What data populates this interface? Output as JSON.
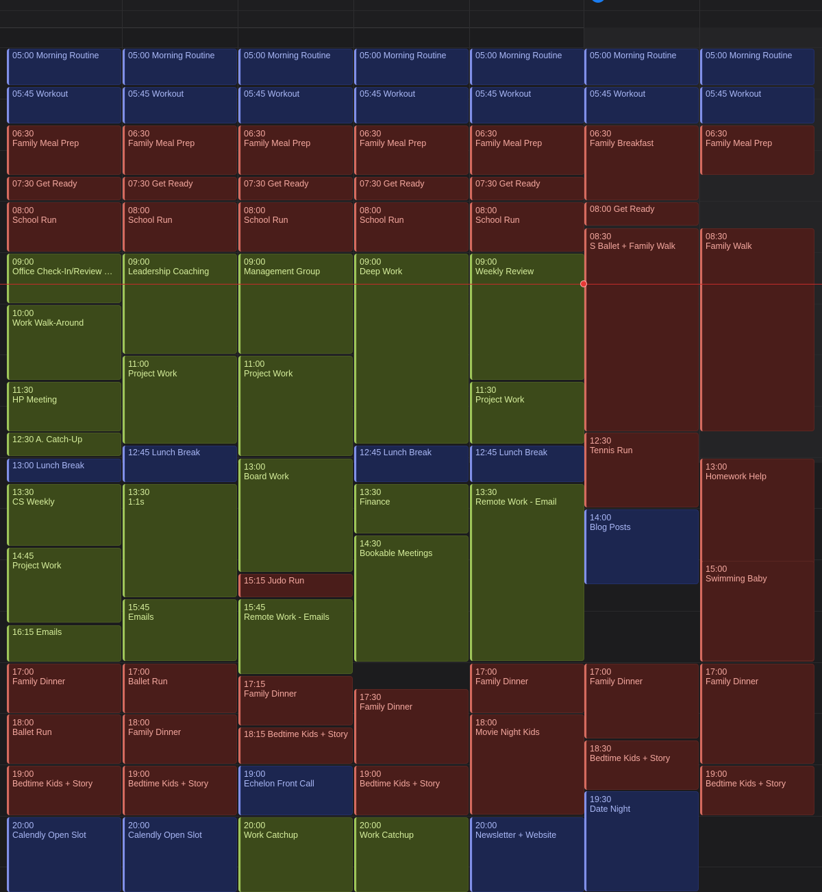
{
  "calendar": {
    "columns": [
      {
        "events": [
          {
            "time": "05:00",
            "name": "Morning Routine",
            "color": "blue"
          },
          {
            "time": "05:45",
            "name": "Workout",
            "color": "blue"
          },
          {
            "time": "06:30",
            "name": "Family Meal Prep",
            "color": "red"
          },
          {
            "time": "07:30",
            "name": "Get Ready",
            "color": "red"
          },
          {
            "time": "08:00",
            "name": "School Run",
            "color": "red"
          },
          {
            "time": "09:00",
            "name": "Office Check-In/Review W...",
            "color": "green"
          },
          {
            "time": "10:00",
            "name": "Work Walk-Around",
            "color": "green"
          },
          {
            "time": "11:30",
            "name": "HP Meeting",
            "color": "green"
          },
          {
            "time": "12:30",
            "name": "A. Catch-Up",
            "color": "green"
          },
          {
            "time": "13:00",
            "name": "Lunch Break",
            "color": "blue"
          },
          {
            "time": "13:30",
            "name": "CS Weekly",
            "color": "green"
          },
          {
            "time": "14:45",
            "name": "Project Work",
            "color": "green"
          },
          {
            "time": "16:15",
            "name": "Emails",
            "color": "green"
          },
          {
            "time": "17:00",
            "name": "Family Dinner",
            "color": "red"
          },
          {
            "time": "18:00",
            "name": "Ballet Run",
            "color": "red"
          },
          {
            "time": "19:00",
            "name": "Bedtime Kids + Story",
            "color": "red"
          },
          {
            "time": "20:00",
            "name": "Calendly Open Slot",
            "color": "blue"
          }
        ]
      },
      {
        "events": [
          {
            "time": "05:00",
            "name": "Morning Routine",
            "color": "blue"
          },
          {
            "time": "05:45",
            "name": "Workout",
            "color": "blue"
          },
          {
            "time": "06:30",
            "name": "Family Meal Prep",
            "color": "red"
          },
          {
            "time": "07:30",
            "name": "Get Ready",
            "color": "red"
          },
          {
            "time": "08:00",
            "name": "School Run",
            "color": "red"
          },
          {
            "time": "09:00",
            "name": "Leadership Coaching",
            "color": "green"
          },
          {
            "time": "11:00",
            "name": "Project Work",
            "color": "green"
          },
          {
            "time": "12:45",
            "name": "Lunch Break",
            "color": "blue"
          },
          {
            "time": "13:30",
            "name": "1:1s",
            "color": "green"
          },
          {
            "time": "15:45",
            "name": "Emails",
            "color": "green"
          },
          {
            "time": "17:00",
            "name": "Ballet Run",
            "color": "red"
          },
          {
            "time": "18:00",
            "name": "Family Dinner",
            "color": "red"
          },
          {
            "time": "19:00",
            "name": "Bedtime Kids + Story",
            "color": "red"
          },
          {
            "time": "20:00",
            "name": "Calendly Open Slot",
            "color": "blue"
          }
        ]
      },
      {
        "events": [
          {
            "time": "05:00",
            "name": "Morning Routine",
            "color": "blue"
          },
          {
            "time": "05:45",
            "name": "Workout",
            "color": "blue"
          },
          {
            "time": "06:30",
            "name": "Family Meal Prep",
            "color": "red"
          },
          {
            "time": "07:30",
            "name": "Get Ready",
            "color": "red"
          },
          {
            "time": "08:00",
            "name": "School Run",
            "color": "red"
          },
          {
            "time": "09:00",
            "name": "Management Group",
            "color": "green"
          },
          {
            "time": "11:00",
            "name": "Project Work",
            "color": "green"
          },
          {
            "time": "13:00",
            "name": "Board Work",
            "color": "green"
          },
          {
            "time": "15:15",
            "name": "Judo Run",
            "color": "red"
          },
          {
            "time": "15:45",
            "name": "Remote Work - Emails",
            "color": "green"
          },
          {
            "time": "17:15",
            "name": "Family Dinner",
            "color": "red"
          },
          {
            "time": "18:15",
            "name": "Bedtime Kids + Story",
            "color": "red"
          },
          {
            "time": "19:00",
            "name": "Echelon Front Call",
            "color": "blue"
          },
          {
            "time": "20:00",
            "name": "Work Catchup",
            "color": "green"
          }
        ]
      },
      {
        "events": [
          {
            "time": "05:00",
            "name": "Morning Routine",
            "color": "blue"
          },
          {
            "time": "05:45",
            "name": "Workout",
            "color": "blue"
          },
          {
            "time": "06:30",
            "name": "Family Meal Prep",
            "color": "red"
          },
          {
            "time": "07:30",
            "name": "Get Ready",
            "color": "red"
          },
          {
            "time": "08:00",
            "name": "School Run",
            "color": "red"
          },
          {
            "time": "09:00",
            "name": "Deep Work",
            "color": "green"
          },
          {
            "time": "12:45",
            "name": "Lunch Break",
            "color": "blue"
          },
          {
            "time": "13:30",
            "name": "Finance",
            "color": "green"
          },
          {
            "time": "14:30",
            "name": "Bookable Meetings",
            "color": "green"
          },
          {
            "time": "17:30",
            "name": "Family Dinner",
            "color": "red"
          },
          {
            "time": "19:00",
            "name": "Bedtime Kids + Story",
            "color": "red"
          },
          {
            "time": "20:00",
            "name": "Work Catchup",
            "color": "green"
          }
        ]
      },
      {
        "events": [
          {
            "time": "05:00",
            "name": "Morning Routine",
            "color": "blue"
          },
          {
            "time": "05:45",
            "name": "Workout",
            "color": "blue"
          },
          {
            "time": "06:30",
            "name": "Family Meal Prep",
            "color": "red"
          },
          {
            "time": "07:30",
            "name": "Get Ready",
            "color": "red"
          },
          {
            "time": "08:00",
            "name": "School Run",
            "color": "red"
          },
          {
            "time": "09:00",
            "name": "Weekly Review",
            "color": "green"
          },
          {
            "time": "11:30",
            "name": "Project Work",
            "color": "green"
          },
          {
            "time": "12:45",
            "name": "Lunch Break",
            "color": "blue"
          },
          {
            "time": "13:30",
            "name": "Remote Work - Email",
            "color": "green"
          },
          {
            "time": "17:00",
            "name": "Family Dinner",
            "color": "red"
          },
          {
            "time": "18:00",
            "name": "Movie Night Kids",
            "color": "red"
          },
          {
            "time": "20:00",
            "name": "Newsletter + Website",
            "color": "blue"
          }
        ]
      },
      {
        "events": [
          {
            "time": "05:00",
            "name": "Morning Routine",
            "color": "blue"
          },
          {
            "time": "05:45",
            "name": "Workout",
            "color": "blue"
          },
          {
            "time": "06:30",
            "name": "Family Breakfast",
            "color": "red"
          },
          {
            "time": "08:00",
            "name": "Get Ready",
            "color": "red"
          },
          {
            "time": "08:30",
            "name": "S Ballet + Family Walk",
            "color": "red"
          },
          {
            "time": "12:30",
            "name": "Tennis Run",
            "color": "red"
          },
          {
            "time": "14:00",
            "name": "Blog Posts",
            "color": "blue"
          },
          {
            "time": "17:00",
            "name": "Family Dinner",
            "color": "red"
          },
          {
            "time": "18:30",
            "name": "Bedtime Kids + Story",
            "color": "red"
          },
          {
            "time": "19:30",
            "name": "Date Night",
            "color": "blue"
          }
        ]
      },
      {
        "events": [
          {
            "time": "05:00",
            "name": "Morning Routine",
            "color": "blue"
          },
          {
            "time": "05:45",
            "name": "Workout",
            "color": "blue"
          },
          {
            "time": "06:30",
            "name": "Family Meal Prep",
            "color": "red"
          },
          {
            "time": "08:30",
            "name": "Family Walk",
            "color": "red"
          },
          {
            "time": "13:00",
            "name": "Homework Help",
            "color": "red"
          },
          {
            "time": "15:00",
            "name": "Swimming Baby",
            "color": "red"
          },
          {
            "time": "17:00",
            "name": "Family Dinner",
            "color": "red"
          },
          {
            "time": "19:00",
            "name": "Bedtime Kids + Story",
            "color": "red"
          }
        ]
      }
    ]
  }
}
